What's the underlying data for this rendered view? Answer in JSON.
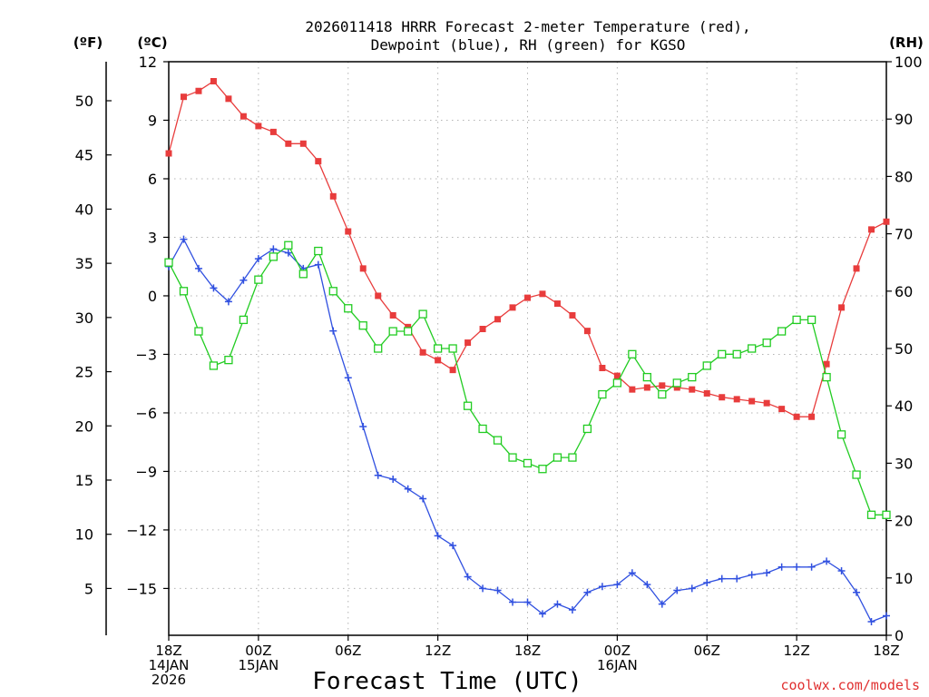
{
  "chart_data": {
    "type": "line",
    "title_line1": "2026011418 HRRR Forecast 2-meter Temperature (red),",
    "title_line2": "Dewpoint (blue), RH (green) for KGSO",
    "xlabel": "Forecast Time (UTC)",
    "credit": "coolwx.com/models",
    "units": {
      "fahrenheit": "(ºF)",
      "celsius": "(ºC)",
      "rh": "(RH)"
    },
    "colors": {
      "temperature": "#e83c3c",
      "dewpoint": "#3050e0",
      "rh": "#22cc22"
    },
    "x_range_hours": [
      0,
      48
    ],
    "celsius_range": [
      -17.4,
      12
    ],
    "rh_range": [
      0,
      100
    ],
    "celsius_ticks": [
      "12",
      "9",
      "6",
      "3",
      "0",
      "−3",
      "−6",
      "−9",
      "−12",
      "−15"
    ],
    "fahrenheit_ticks": [
      "50",
      "45",
      "40",
      "35",
      "30",
      "25",
      "20",
      "15",
      "10",
      "5"
    ],
    "rh_ticks": [
      "100",
      "90",
      "80",
      "70",
      "60",
      "50",
      "40",
      "30",
      "20",
      "10",
      "0"
    ],
    "x_ticks": [
      {
        "line1": "18Z",
        "line2": "14JAN",
        "line3": "2026"
      },
      {
        "line1": "00Z",
        "line2": "15JAN",
        "line3": ""
      },
      {
        "line1": "06Z",
        "line2": "",
        "line3": ""
      },
      {
        "line1": "12Z",
        "line2": "",
        "line3": ""
      },
      {
        "line1": "18Z",
        "line2": "",
        "line3": ""
      },
      {
        "line1": "00Z",
        "line2": "16JAN",
        "line3": ""
      },
      {
        "line1": "06Z",
        "line2": "",
        "line3": ""
      },
      {
        "line1": "12Z",
        "line2": "",
        "line3": ""
      },
      {
        "line1": "18Z",
        "line2": "",
        "line3": ""
      }
    ],
    "series": [
      {
        "name": "Temperature (°C)",
        "axis": "celsius",
        "marker": "filled-square",
        "values": [
          7.3,
          10.2,
          10.5,
          11.0,
          10.1,
          9.2,
          8.7,
          8.4,
          7.8,
          7.8,
          6.9,
          5.1,
          3.3,
          1.4,
          0.0,
          -1.0,
          -1.6,
          -2.9,
          -3.3,
          -3.8,
          -2.4,
          -1.7,
          -1.2,
          -0.6,
          -0.1,
          0.1,
          -0.4,
          -1.0,
          -1.8,
          -3.7,
          -4.1,
          -4.8,
          -4.7,
          -4.6,
          -4.7,
          -4.8,
          -5.0,
          -5.2,
          -5.3,
          -5.4,
          -5.5,
          -5.8,
          -6.2,
          -6.2,
          -3.5,
          -0.6,
          1.4,
          3.4,
          3.8
        ]
      },
      {
        "name": "Dewpoint (°C)",
        "axis": "celsius",
        "marker": "plus",
        "values": [
          1.5,
          2.9,
          1.4,
          0.4,
          -0.3,
          0.8,
          1.9,
          2.4,
          2.2,
          1.4,
          1.6,
          -1.8,
          -4.2,
          -6.7,
          -9.2,
          -9.4,
          -9.9,
          -10.4,
          -12.3,
          -12.8,
          -14.4,
          -15.0,
          -15.1,
          -15.7,
          -15.7,
          -16.3,
          -15.8,
          -16.1,
          -15.2,
          -14.9,
          -14.8,
          -14.2,
          -14.8,
          -15.8,
          -15.1,
          -15.0,
          -14.7,
          -14.5,
          -14.5,
          -14.3,
          -14.2,
          -13.9,
          -13.9,
          -13.9,
          -13.6,
          -14.1,
          -15.2,
          -16.7,
          -16.4
        ]
      },
      {
        "name": "RH (%)",
        "axis": "rh",
        "marker": "open-square",
        "values": [
          65,
          60,
          53,
          47,
          48,
          55,
          62,
          66,
          68,
          63,
          67,
          60,
          57,
          54,
          50,
          53,
          53,
          56,
          50,
          50,
          40,
          36,
          34,
          31,
          30,
          29,
          31,
          31,
          36,
          42,
          44,
          49,
          45,
          42,
          44,
          45,
          47,
          49,
          49,
          50,
          51,
          53,
          55,
          55,
          45,
          35,
          28,
          21,
          21
        ]
      }
    ]
  }
}
